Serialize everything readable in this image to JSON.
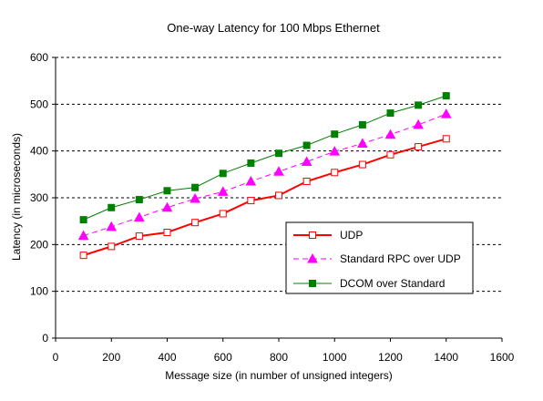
{
  "chart_data": {
    "type": "line",
    "title": "One-way Latency for 100 Mbps Ethernet",
    "xlabel": "Message size (in number of unsigned integers)",
    "ylabel": "Latency (in microseconds)",
    "xlim": [
      0,
      1600
    ],
    "ylim": [
      0,
      600
    ],
    "xticks": [
      "0",
      "200",
      "400",
      "600",
      "800",
      "1000",
      "1200",
      "1400",
      "1600"
    ],
    "yticks": [
      "0",
      "100",
      "200",
      "300",
      "400",
      "500",
      "600"
    ],
    "grid": "horizontal dashed",
    "legend_position": "lower-right",
    "x": [
      100,
      200,
      300,
      400,
      500,
      600,
      700,
      800,
      900,
      1000,
      1100,
      1200,
      1300,
      1400
    ],
    "series": [
      {
        "name": "UDP",
        "color": "#ff0000",
        "line_style": "solid",
        "marker": "open-square",
        "values": [
          177,
          196,
          218,
          226,
          247,
          266,
          294,
          305,
          335,
          354,
          371,
          392,
          409,
          426
        ]
      },
      {
        "name": "Standard RPC over UDP",
        "color": "#ff00ff",
        "line_style": "dashed",
        "marker": "filled-triangle",
        "values": [
          219,
          238,
          258,
          279,
          298,
          313,
          335,
          356,
          377,
          399,
          416,
          435,
          456,
          479
        ]
      },
      {
        "name": "DCOM over Standard",
        "color": "#008000",
        "line_style": "solid",
        "marker": "filled-square",
        "values": [
          253,
          279,
          296,
          315,
          322,
          352,
          374,
          395,
          412,
          436,
          456,
          481,
          498,
          518
        ]
      }
    ]
  }
}
